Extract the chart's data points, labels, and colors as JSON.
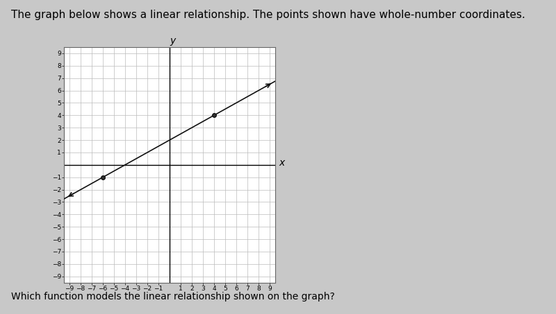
{
  "title": "The graph below shows a linear relationship. The points shown have whole-number coordinates.",
  "question": "Which function models the linear relationship shown on the graph?",
  "slope": 0.5,
  "intercept": 2,
  "marked_points": [
    [
      -6,
      -1
    ],
    [
      4,
      4
    ]
  ],
  "x_min": -9,
  "x_max": 9,
  "y_min": -9,
  "y_max": 9,
  "line_color": "#111111",
  "point_color": "#111111",
  "grid_color": "#bbbbbb",
  "bg_color": "#ffffff",
  "page_color": "#c8c8c8",
  "title_fontsize": 11,
  "question_fontsize": 10,
  "axis_label_fontsize": 10,
  "tick_fontsize": 6.5
}
